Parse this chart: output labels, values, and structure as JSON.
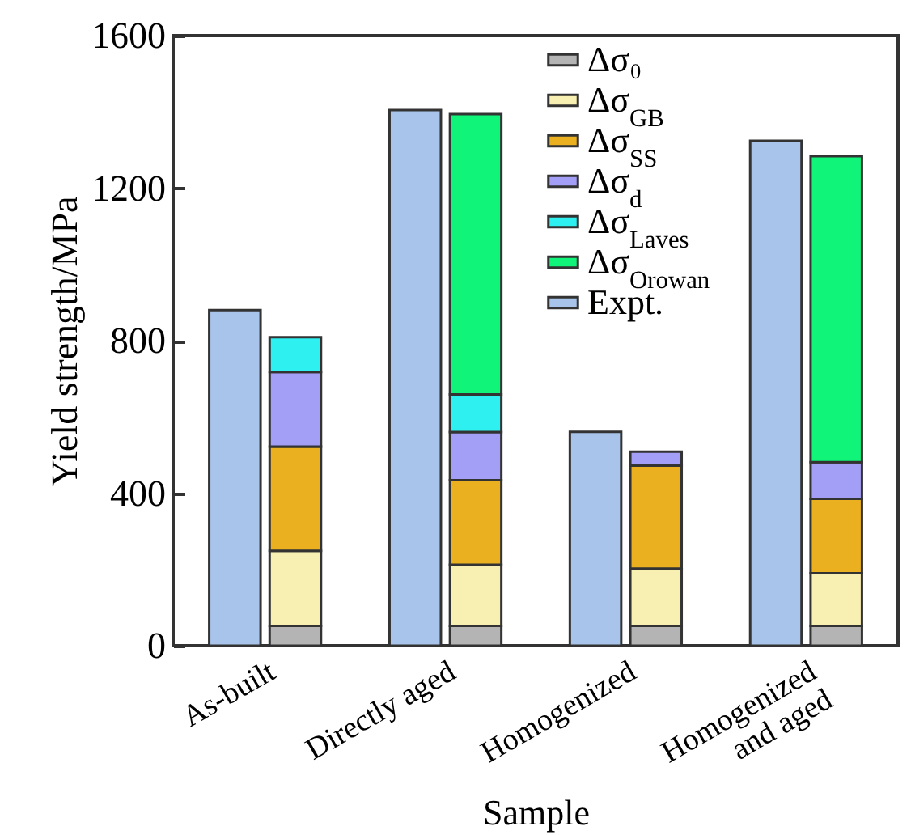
{
  "chart_data": {
    "type": "bar",
    "xlabel": "Sample",
    "ylabel": "Yield strength/MPa",
    "categories": [
      "As-built",
      "Directly aged",
      "Homogenized",
      "Homogenized and aged"
    ],
    "series": [
      {
        "name": "Δσ₀",
        "color": "#b4b4b4",
        "values": [
          52,
          52,
          52,
          52
        ],
        "base": [
          0,
          0,
          0,
          0
        ]
      },
      {
        "name": "Δσ$_{GB}$",
        "color": "#f8efb2",
        "values": [
          197,
          160,
          150,
          138
        ],
        "base": [
          52,
          52,
          52,
          52
        ]
      },
      {
        "name": "Δσ$_{SS}$",
        "color": "#eab020",
        "values": [
          273,
          222,
          270,
          195
        ],
        "base": [
          249,
          212,
          202,
          190
        ]
      },
      {
        "name": "Δσ$_{d}$",
        "color": "#a39ef6",
        "values": [
          196,
          126,
          37,
          96
        ],
        "base": [
          522,
          434,
          472,
          385
        ]
      },
      {
        "name": "Δσ$_{Laves}$",
        "color": "#2ef0f0",
        "values": [
          91,
          99,
          null,
          null
        ],
        "base": [
          718,
          560,
          null,
          null
        ]
      },
      {
        "name": "Δσ$_{Orowan}$",
        "color": "#10f47a",
        "values": [
          null,
          735,
          null,
          803
        ],
        "base": [
          null,
          659,
          null,
          481
        ]
      },
      {
        "name": "Expt.",
        "color": "#a9c4ea",
        "values": [
          880,
          1405,
          561,
          1324
        ]
      }
    ],
    "ylim": [
      0,
      1600
    ],
    "yticks": [
      0,
      400,
      800,
      1200,
      1600
    ],
    "grid": false,
    "legend": "top"
  }
}
